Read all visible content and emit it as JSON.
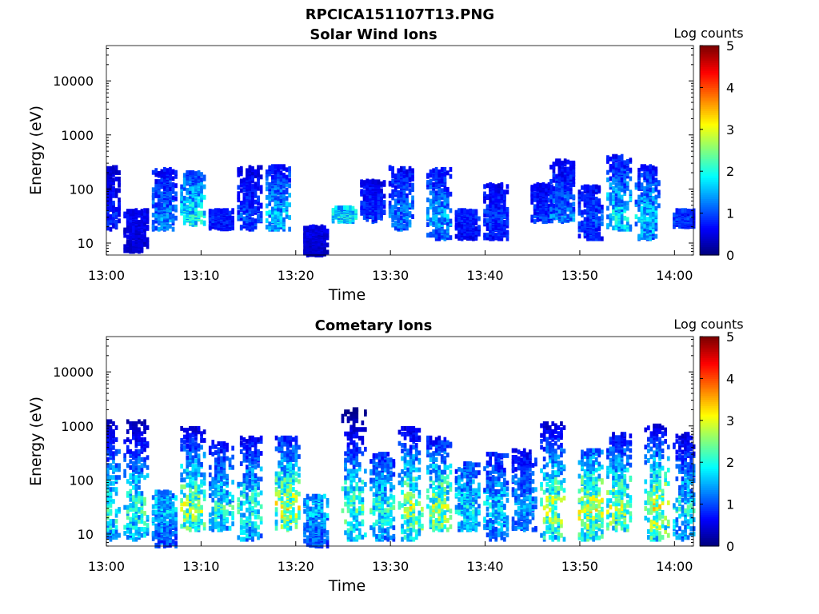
{
  "figure": {
    "title": "RPCICA151107T13.PNG"
  },
  "chart_data": [
    {
      "type": "heatmap",
      "title": "Solar Wind Ions",
      "xlabel": "Time",
      "ylabel": "Energy (eV)",
      "xticks": [
        "13:00",
        "13:10",
        "13:20",
        "13:30",
        "13:40",
        "13:50",
        "14:00"
      ],
      "xlim": [
        "13:00",
        "14:02"
      ],
      "yscale": "log",
      "ylim": [
        6,
        45000
      ],
      "yticks": [
        10,
        100,
        1000,
        10000
      ],
      "ytick_labels": [
        "10",
        "100",
        "1000",
        "10000"
      ],
      "colorbar": {
        "label": "Log counts",
        "range": [
          0,
          5
        ],
        "ticks": [
          "0",
          "1",
          "2",
          "3",
          "4",
          "5"
        ],
        "colormap": "jet"
      },
      "bursts": [
        {
          "t": "13:00",
          "emin": 18,
          "emax": 250,
          "level": 0.8
        },
        {
          "t": "13:03",
          "emin": 7,
          "emax": 40,
          "level": 0.6
        },
        {
          "t": "13:06",
          "emin": 18,
          "emax": 230,
          "level": 1.3
        },
        {
          "t": "13:09",
          "emin": 22,
          "emax": 200,
          "level": 1.9
        },
        {
          "t": "13:12",
          "emin": 18,
          "emax": 40,
          "level": 0.8
        },
        {
          "t": "13:15",
          "emin": 18,
          "emax": 250,
          "level": 1.0
        },
        {
          "t": "13:18",
          "emin": 18,
          "emax": 260,
          "level": 1.6
        },
        {
          "t": "13:22",
          "emin": 6,
          "emax": 20,
          "level": 0.6
        },
        {
          "t": "13:25",
          "emin": 25,
          "emax": 45,
          "level": 1.8
        },
        {
          "t": "13:28",
          "emin": 25,
          "emax": 140,
          "level": 0.9
        },
        {
          "t": "13:31",
          "emin": 18,
          "emax": 250,
          "level": 1.3
        },
        {
          "t": "13:35",
          "emin": 12,
          "emax": 230,
          "level": 1.4
        },
        {
          "t": "13:38",
          "emin": 12,
          "emax": 40,
          "level": 0.8
        },
        {
          "t": "13:41",
          "emin": 12,
          "emax": 120,
          "level": 0.9
        },
        {
          "t": "13:46",
          "emin": 25,
          "emax": 120,
          "level": 0.9
        },
        {
          "t": "13:48",
          "emin": 25,
          "emax": 330,
          "level": 1.3
        },
        {
          "t": "13:51",
          "emin": 12,
          "emax": 110,
          "level": 1.0
        },
        {
          "t": "13:54",
          "emin": 18,
          "emax": 400,
          "level": 1.8
        },
        {
          "t": "13:57",
          "emin": 12,
          "emax": 260,
          "level": 1.6
        },
        {
          "t": "14:01",
          "emin": 20,
          "emax": 40,
          "level": 0.9
        }
      ]
    },
    {
      "type": "heatmap",
      "title": "Cometary Ions",
      "xlabel": "Time",
      "ylabel": "Energy (eV)",
      "xticks": [
        "13:00",
        "13:10",
        "13:20",
        "13:30",
        "13:40",
        "13:50",
        "14:00"
      ],
      "xlim": [
        "13:00",
        "14:02"
      ],
      "yscale": "log",
      "ylim": [
        6,
        45000
      ],
      "yticks": [
        10,
        100,
        1000,
        10000
      ],
      "ytick_labels": [
        "10",
        "100",
        "1000",
        "10000"
      ],
      "colorbar": {
        "label": "Log counts",
        "range": [
          0,
          5
        ],
        "ticks": [
          "0",
          "1",
          "2",
          "3",
          "4",
          "5"
        ],
        "colormap": "jet"
      },
      "bursts": [
        {
          "t": "13:00",
          "emin": 8,
          "emax": 1200,
          "level": 2.2
        },
        {
          "t": "13:03",
          "emin": 8,
          "emax": 1200,
          "level": 2.1
        },
        {
          "t": "13:06",
          "emin": 6,
          "emax": 60,
          "level": 1.6
        },
        {
          "t": "13:09",
          "emin": 12,
          "emax": 900,
          "level": 2.6
        },
        {
          "t": "13:12",
          "emin": 12,
          "emax": 500,
          "level": 2.0
        },
        {
          "t": "13:15",
          "emin": 8,
          "emax": 600,
          "level": 2.1
        },
        {
          "t": "13:19",
          "emin": 12,
          "emax": 600,
          "level": 2.8
        },
        {
          "t": "13:22",
          "emin": 6,
          "emax": 50,
          "level": 1.6
        },
        {
          "t": "13:26",
          "emin": 8,
          "emax": 2000,
          "level": 2.3
        },
        {
          "t": "13:29",
          "emin": 8,
          "emax": 300,
          "level": 2.0
        },
        {
          "t": "13:32",
          "emin": 8,
          "emax": 900,
          "level": 2.7
        },
        {
          "t": "13:35",
          "emin": 12,
          "emax": 600,
          "level": 2.6
        },
        {
          "t": "13:38",
          "emin": 12,
          "emax": 200,
          "level": 1.8
        },
        {
          "t": "13:41",
          "emin": 8,
          "emax": 300,
          "level": 1.7
        },
        {
          "t": "13:44",
          "emin": 12,
          "emax": 350,
          "level": 1.5
        },
        {
          "t": "13:47",
          "emin": 8,
          "emax": 1100,
          "level": 2.7
        },
        {
          "t": "13:51",
          "emin": 8,
          "emax": 350,
          "level": 2.8
        },
        {
          "t": "13:54",
          "emin": 12,
          "emax": 700,
          "level": 2.6
        },
        {
          "t": "13:58",
          "emin": 8,
          "emax": 1000,
          "level": 2.9
        },
        {
          "t": "14:01",
          "emin": 8,
          "emax": 700,
          "level": 1.9
        }
      ]
    }
  ]
}
